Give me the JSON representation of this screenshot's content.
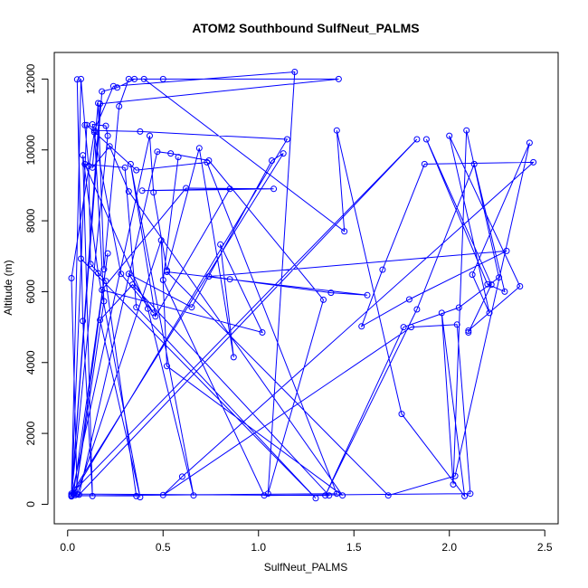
{
  "chart_data": {
    "type": "line",
    "title": "ATOM2 Southbound SulfNeut_PALMS",
    "xlabel": "SulfNeut_PALMS",
    "ylabel": "Altitude (m)",
    "xlim": [
      -0.07,
      2.57
    ],
    "ylim": [
      -550,
      12750
    ],
    "xticks": [
      0.0,
      0.5,
      1.0,
      1.5,
      2.0,
      2.5
    ],
    "xtick_labels": [
      "0.0",
      "0.5",
      "1.0",
      "1.5",
      "2.0",
      "2.5"
    ],
    "yticks": [
      0,
      2000,
      4000,
      6000,
      8000,
      10000,
      12000
    ],
    "ytick_labels": [
      "0",
      "2000",
      "4000",
      "6000",
      "8000",
      "10000",
      "12000"
    ],
    "grid": false,
    "series": [
      {
        "color": "#0000ff",
        "marker": "open-circle",
        "points": [
          {
            "x": 0.02,
            "y": 250
          },
          {
            "x": 0.07,
            "y": 12000
          },
          {
            "x": 0.09,
            "y": 10700
          },
          {
            "x": 0.11,
            "y": 9550
          },
          {
            "x": 0.12,
            "y": 6780
          },
          {
            "x": 0.2,
            "y": 6300
          },
          {
            "x": 0.36,
            "y": 230
          },
          {
            "x": 0.02,
            "y": 250
          },
          {
            "x": 0.18,
            "y": 11650
          },
          {
            "x": 0.26,
            "y": 11760
          },
          {
            "x": 0.35,
            "y": 12000
          },
          {
            "x": 0.5,
            "y": 12000
          },
          {
            "x": 1.42,
            "y": 12000
          },
          {
            "x": 0.17,
            "y": 11300
          },
          {
            "x": 0.02,
            "y": 260
          },
          {
            "x": 0.21,
            "y": 10400
          },
          {
            "x": 0.2,
            "y": 10680
          },
          {
            "x": 0.13,
            "y": 10720
          },
          {
            "x": 0.28,
            "y": 6500
          },
          {
            "x": 0.45,
            "y": 5400
          },
          {
            "x": 0.32,
            "y": 6500
          },
          {
            "x": 0.65,
            "y": 5560
          },
          {
            "x": 1.07,
            "y": 9700
          },
          {
            "x": 1.13,
            "y": 9900
          },
          {
            "x": 0.02,
            "y": 300
          },
          {
            "x": 1.83,
            "y": 10300
          },
          {
            "x": 0.06,
            "y": 270
          },
          {
            "x": 0.47,
            "y": 9950
          },
          {
            "x": 0.54,
            "y": 9900
          },
          {
            "x": 0.74,
            "y": 9700
          },
          {
            "x": 1.34,
            "y": 5770
          },
          {
            "x": 1.05,
            "y": 300
          },
          {
            "x": 1.19,
            "y": 12200
          },
          {
            "x": 0.24,
            "y": 11800
          },
          {
            "x": 0.14,
            "y": 10550
          },
          {
            "x": 0.38,
            "y": 10520
          },
          {
            "x": 1.15,
            "y": 10300
          },
          {
            "x": 0.02,
            "y": 220
          },
          {
            "x": 0.1,
            "y": 10700
          },
          {
            "x": 0.36,
            "y": 9430
          },
          {
            "x": 0.73,
            "y": 9650
          },
          {
            "x": 1.41,
            "y": 300
          },
          {
            "x": 0.02,
            "y": 240
          },
          {
            "x": 0.43,
            "y": 10400
          },
          {
            "x": 0.45,
            "y": 8800
          },
          {
            "x": 0.52,
            "y": 6600
          },
          {
            "x": 0.69,
            "y": 10050
          },
          {
            "x": 0.87,
            "y": 4150
          },
          {
            "x": 0.8,
            "y": 7330
          },
          {
            "x": 1.02,
            "y": 4850
          },
          {
            "x": 0.18,
            "y": 6050
          },
          {
            "x": 0.62,
            "y": 8920
          },
          {
            "x": 1.08,
            "y": 8900
          },
          {
            "x": 0.39,
            "y": 8850
          },
          {
            "x": 0.85,
            "y": 8900
          },
          {
            "x": 0.46,
            "y": 5300
          },
          {
            "x": 0.33,
            "y": 9600
          },
          {
            "x": 0.66,
            "y": 250
          },
          {
            "x": 0.42,
            "y": 5520
          },
          {
            "x": 0.09,
            "y": 9600
          },
          {
            "x": 0.3,
            "y": 9500
          },
          {
            "x": 0.36,
            "y": 5560
          },
          {
            "x": 1.3,
            "y": 170
          },
          {
            "x": 0.07,
            "y": 6930
          },
          {
            "x": 0.05,
            "y": 11990
          },
          {
            "x": 0.08,
            "y": 5170
          },
          {
            "x": 0.13,
            "y": 230
          },
          {
            "x": 0.08,
            "y": 9850
          },
          {
            "x": 0.16,
            "y": 6520
          },
          {
            "x": 0.38,
            "y": 200
          },
          {
            "x": 0.17,
            "y": 5200
          },
          {
            "x": 0.34,
            "y": 6200
          },
          {
            "x": 1.37,
            "y": 250
          },
          {
            "x": 0.03,
            "y": 290
          },
          {
            "x": 0.21,
            "y": 7080
          },
          {
            "x": 0.04,
            "y": 260
          },
          {
            "x": 0.19,
            "y": 5730
          },
          {
            "x": 0.14,
            "y": 10500
          },
          {
            "x": 0.02,
            "y": 6380
          },
          {
            "x": 0.05,
            "y": 280
          },
          {
            "x": 0.49,
            "y": 7450
          },
          {
            "x": 0.52,
            "y": 3900
          },
          {
            "x": 1.44,
            "y": 250
          },
          {
            "x": 0.32,
            "y": 8830
          },
          {
            "x": 0.22,
            "y": 10100
          },
          {
            "x": 0.13,
            "y": 9500
          },
          {
            "x": 0.16,
            "y": 11320
          },
          {
            "x": 0.19,
            "y": 6630
          },
          {
            "x": 0.27,
            "y": 11230
          },
          {
            "x": 0.32,
            "y": 12000
          },
          {
            "x": 0.4,
            "y": 12000
          },
          {
            "x": 1.45,
            "y": 7700
          },
          {
            "x": 1.41,
            "y": 10550
          },
          {
            "x": 1.75,
            "y": 2550
          },
          {
            "x": 2.08,
            "y": 230
          },
          {
            "x": 1.96,
            "y": 5400
          },
          {
            "x": 2.02,
            "y": 560
          },
          {
            "x": 2.09,
            "y": 10550
          },
          {
            "x": 2.26,
            "y": 6400
          },
          {
            "x": 2.05,
            "y": 5550
          },
          {
            "x": 1.76,
            "y": 5000
          },
          {
            "x": 1.35,
            "y": 250
          },
          {
            "x": 1.83,
            "y": 5500
          },
          {
            "x": 2.13,
            "y": 9600
          },
          {
            "x": 2.29,
            "y": 6000
          },
          {
            "x": 2.2,
            "y": 6210
          },
          {
            "x": 1.88,
            "y": 10300
          },
          {
            "x": 2.22,
            "y": 6200
          },
          {
            "x": 2.1,
            "y": 4850
          },
          {
            "x": 2.1,
            "y": 4900
          },
          {
            "x": 2.37,
            "y": 6150
          },
          {
            "x": 2.0,
            "y": 10400
          },
          {
            "x": 2.21,
            "y": 5400
          },
          {
            "x": 2.12,
            "y": 6480
          },
          {
            "x": 2.42,
            "y": 10200
          },
          {
            "x": 2.03,
            "y": 800
          },
          {
            "x": 1.68,
            "y": 250
          },
          {
            "x": 0.52,
            "y": 6560
          },
          {
            "x": 0.85,
            "y": 6350
          },
          {
            "x": 1.57,
            "y": 5900
          },
          {
            "x": 1.38,
            "y": 5970
          },
          {
            "x": 0.74,
            "y": 6430
          },
          {
            "x": 2.3,
            "y": 7150
          },
          {
            "x": 1.79,
            "y": 5780
          },
          {
            "x": 1.54,
            "y": 5020
          },
          {
            "x": 1.65,
            "y": 6620
          },
          {
            "x": 1.87,
            "y": 9600
          },
          {
            "x": 2.44,
            "y": 9650
          },
          {
            "x": 0.6,
            "y": 780
          },
          {
            "x": 0.5,
            "y": 260
          },
          {
            "x": 1.8,
            "y": 5000
          },
          {
            "x": 2.04,
            "y": 5070
          },
          {
            "x": 2.11,
            "y": 300
          },
          {
            "x": 1.03,
            "y": 250
          },
          {
            "x": 0.5,
            "y": 6330
          },
          {
            "x": 0.58,
            "y": 9800
          }
        ]
      }
    ]
  }
}
